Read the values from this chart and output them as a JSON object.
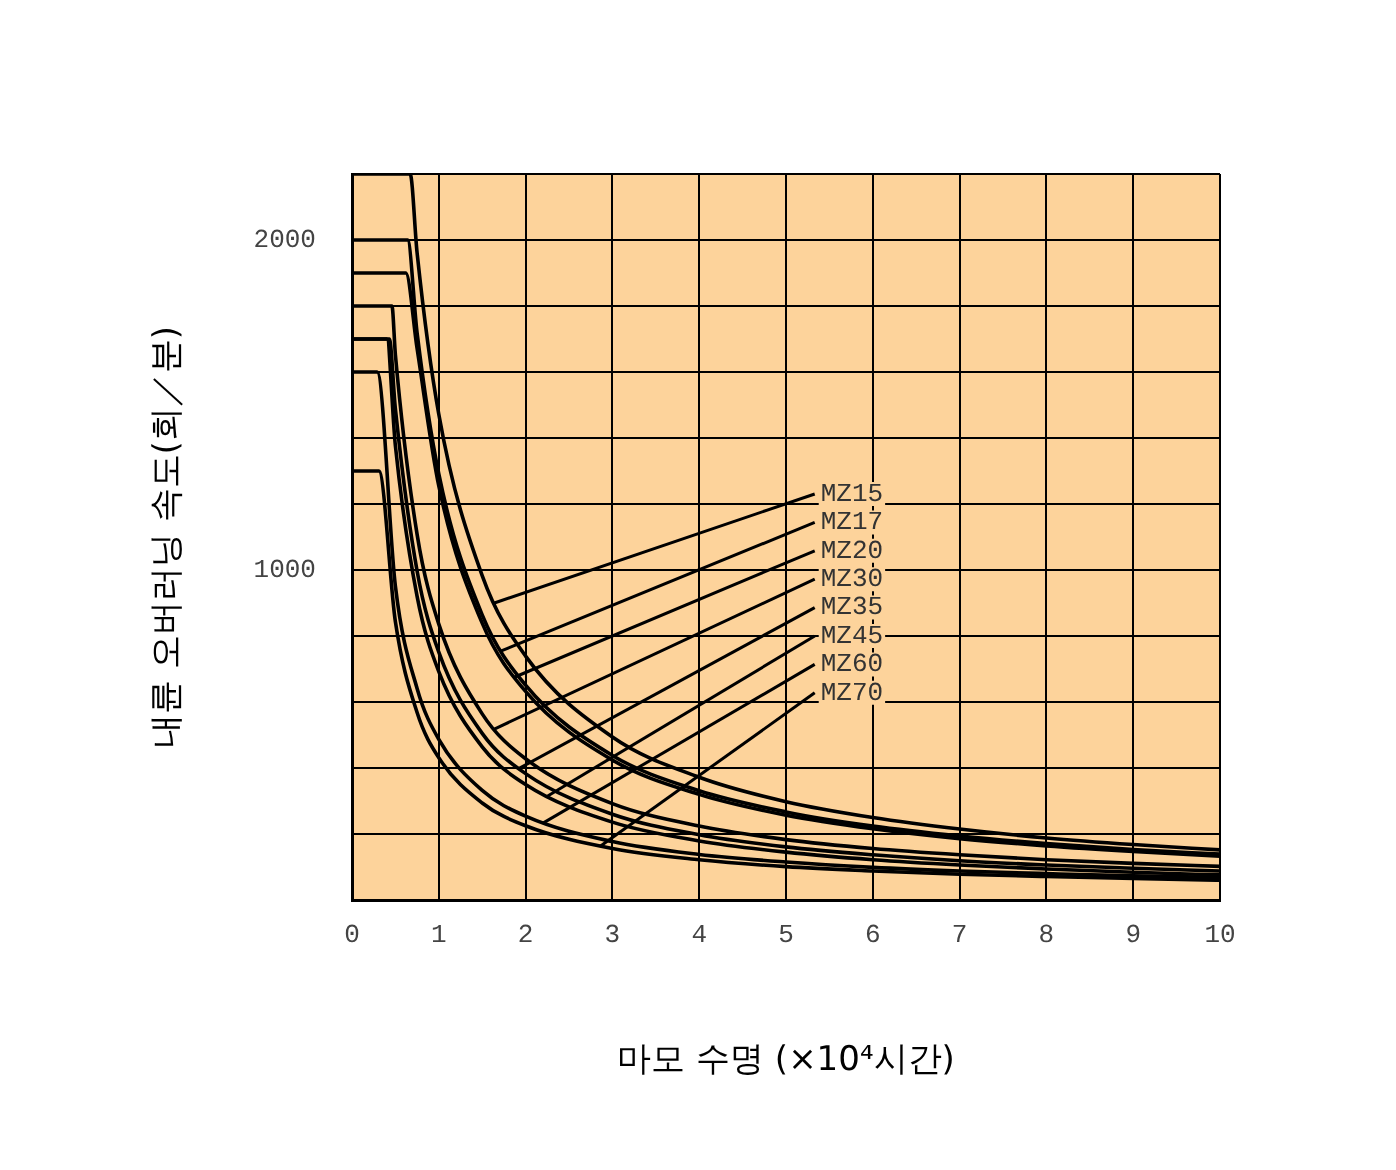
{
  "chart_data": {
    "type": "line",
    "xlabel": "마모 수명 (×10⁴시간)",
    "ylabel": "내륜 오버러닝 속도(회／분)",
    "xlim": [
      0,
      10
    ],
    "xticks": [
      0,
      1,
      2,
      3,
      4,
      5,
      6,
      7,
      8,
      9,
      10
    ],
    "ylim": [
      0,
      2200
    ],
    "yticks": [
      {
        "value": 0,
        "label": null
      },
      {
        "value": 200,
        "label": null
      },
      {
        "value": 400,
        "label": null
      },
      {
        "value": 600,
        "label": null
      },
      {
        "value": 800,
        "label": null
      },
      {
        "value": 1000,
        "label": "1000"
      },
      {
        "value": 1200,
        "label": null
      },
      {
        "value": 1400,
        "label": null
      },
      {
        "value": 1600,
        "label": null
      },
      {
        "value": 1800,
        "label": null
      },
      {
        "value": 2000,
        "label": "2000"
      },
      {
        "value": 2200,
        "label": null
      }
    ],
    "grid": true,
    "annotations": [
      {
        "text": "MZ15",
        "x": 1.64,
        "y": 900
      },
      {
        "text": "MZ17",
        "x": 1.72,
        "y": 755
      },
      {
        "text": "MZ20",
        "x": 1.87,
        "y": 675
      },
      {
        "text": "MZ30",
        "x": 1.64,
        "y": 518
      },
      {
        "text": "MZ35",
        "x": 1.92,
        "y": 398
      },
      {
        "text": "MZ45",
        "x": 2.24,
        "y": 313
      },
      {
        "text": "MZ60",
        "x": 2.2,
        "y": 233
      },
      {
        "text": "MZ70",
        "x": 2.86,
        "y": 163
      }
    ],
    "legend": false,
    "marker": "none",
    "line_style": "solid",
    "series": [
      {
        "color": "#000000",
        "x": [
          0,
          0.67,
          0.75,
          1,
          1.5,
          2,
          3,
          4,
          5,
          6,
          7,
          8,
          9,
          10
        ],
        "values": [
          2200,
          2200,
          1961,
          1472,
          983,
          739,
          494,
          372,
          298,
          250,
          215,
          188,
          168,
          152
        ]
      },
      {
        "color": "#000000",
        "x": [
          0,
          0.64,
          0.75,
          1,
          1.5,
          2,
          3,
          4,
          5,
          6,
          7,
          8,
          9,
          10
        ],
        "values": [
          2000,
          2000,
          1718,
          1291,
          864,
          651,
          438,
          331,
          267,
          224,
          194,
          171,
          153,
          139
        ]
      },
      {
        "color": "#000000",
        "x": [
          0,
          0.62,
          0.75,
          1,
          1.5,
          2,
          3,
          4,
          5,
          6,
          7,
          8,
          9,
          10
        ],
        "values": [
          1900,
          1900,
          1671,
          1255,
          839,
          632,
          424,
          320,
          257,
          216,
          186,
          164,
          147,
          133
        ]
      },
      {
        "color": "#000000",
        "x": [
          0,
          0.46,
          0.5,
          0.75,
          1,
          1.5,
          2,
          3,
          4,
          5,
          6,
          7,
          8,
          9,
          10
        ],
        "values": [
          1800,
          1800,
          1652,
          1108,
          836,
          564,
          428,
          292,
          224,
          183,
          156,
          137,
          122,
          111,
          102
        ]
      },
      {
        "color": "#000000",
        "x": [
          0,
          0.43,
          0.5,
          0.75,
          1,
          1.5,
          2,
          3,
          4,
          5,
          6,
          7,
          8,
          9,
          10
        ],
        "values": [
          1700,
          1700,
          1488,
          997,
          751,
          505,
          383,
          260,
          198,
          161,
          137,
          119,
          106,
          96,
          88
        ]
      },
      {
        "color": "#000000",
        "x": [
          0,
          0.4,
          0.5,
          0.75,
          1,
          1.5,
          2,
          3,
          4,
          5,
          6,
          7,
          8,
          9,
          10
        ],
        "values": [
          1700,
          1700,
          1376,
          920,
          692,
          464,
          350,
          236,
          179,
          145,
          122,
          106,
          94,
          84,
          76
        ]
      },
      {
        "color": "#000000",
        "x": [
          0,
          0.29,
          0.5,
          0.75,
          1,
          1.5,
          2,
          3,
          4,
          5,
          6,
          7,
          8,
          9,
          10
        ],
        "values": [
          1600,
          1600,
          951,
          641,
          487,
          332,
          254,
          177,
          138,
          115,
          99,
          88,
          80,
          73,
          68
        ]
      },
      {
        "color": "#000000",
        "x": [
          0,
          0.31,
          0.5,
          0.75,
          1,
          1.5,
          2,
          3,
          4,
          5,
          6,
          7,
          8,
          9,
          10
        ],
        "values": [
          1300,
          1300,
          843,
          568,
          431,
          294,
          225,
          156,
          122,
          101,
          88,
          78,
          71,
          65,
          60
        ]
      }
    ]
  }
}
